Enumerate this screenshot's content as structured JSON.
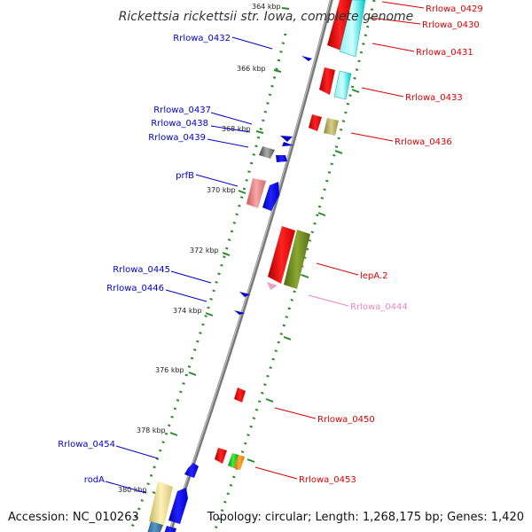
{
  "title": "Rickettsia rickettsii str. Iowa, complete genome",
  "footer": {
    "accession": "Accession: NC_010263",
    "summary": "Topology: circular; Length: 1,268,175 bp; Genes: 1,420"
  },
  "colors": {
    "backbone": "#808080",
    "forward_label": "#dd0000",
    "reverse_label": "#0000cc",
    "pink_label": "#ee88bb",
    "ticks": "#2a8a2a"
  },
  "ticks": [
    "364 kbp",
    "366 kbp",
    "368 kbp",
    "370 kbp",
    "372 kbp",
    "374 kbp",
    "376 kbp",
    "378 kbp",
    "380 kbp"
  ],
  "labels": [
    {
      "text": "Rrlowa_0429",
      "strand": "forward"
    },
    {
      "text": "Rrlowa_0430",
      "strand": "forward"
    },
    {
      "text": "Rrlowa_0431",
      "strand": "forward"
    },
    {
      "text": "Rrlowa_0433",
      "strand": "forward"
    },
    {
      "text": "Rrlowa_0436",
      "strand": "forward"
    },
    {
      "text": "lepA.2",
      "strand": "forward"
    },
    {
      "text": "Rrlowa_0444",
      "strand": "forward-pink"
    },
    {
      "text": "Rrlowa_0450",
      "strand": "forward"
    },
    {
      "text": "Rrlowa_0453",
      "strand": "forward"
    },
    {
      "text": "Rrlowa_0432",
      "strand": "reverse"
    },
    {
      "text": "Rrlowa_0437",
      "strand": "reverse"
    },
    {
      "text": "Rrlowa_0438",
      "strand": "reverse"
    },
    {
      "text": "Rrlowa_0439",
      "strand": "reverse"
    },
    {
      "text": "prfB",
      "strand": "reverse"
    },
    {
      "text": "Rrlowa_0445",
      "strand": "reverse"
    },
    {
      "text": "Rrlowa_0446",
      "strand": "reverse"
    },
    {
      "text": "Rrlowa_0454",
      "strand": "reverse"
    },
    {
      "text": "rodA",
      "strand": "reverse"
    }
  ]
}
